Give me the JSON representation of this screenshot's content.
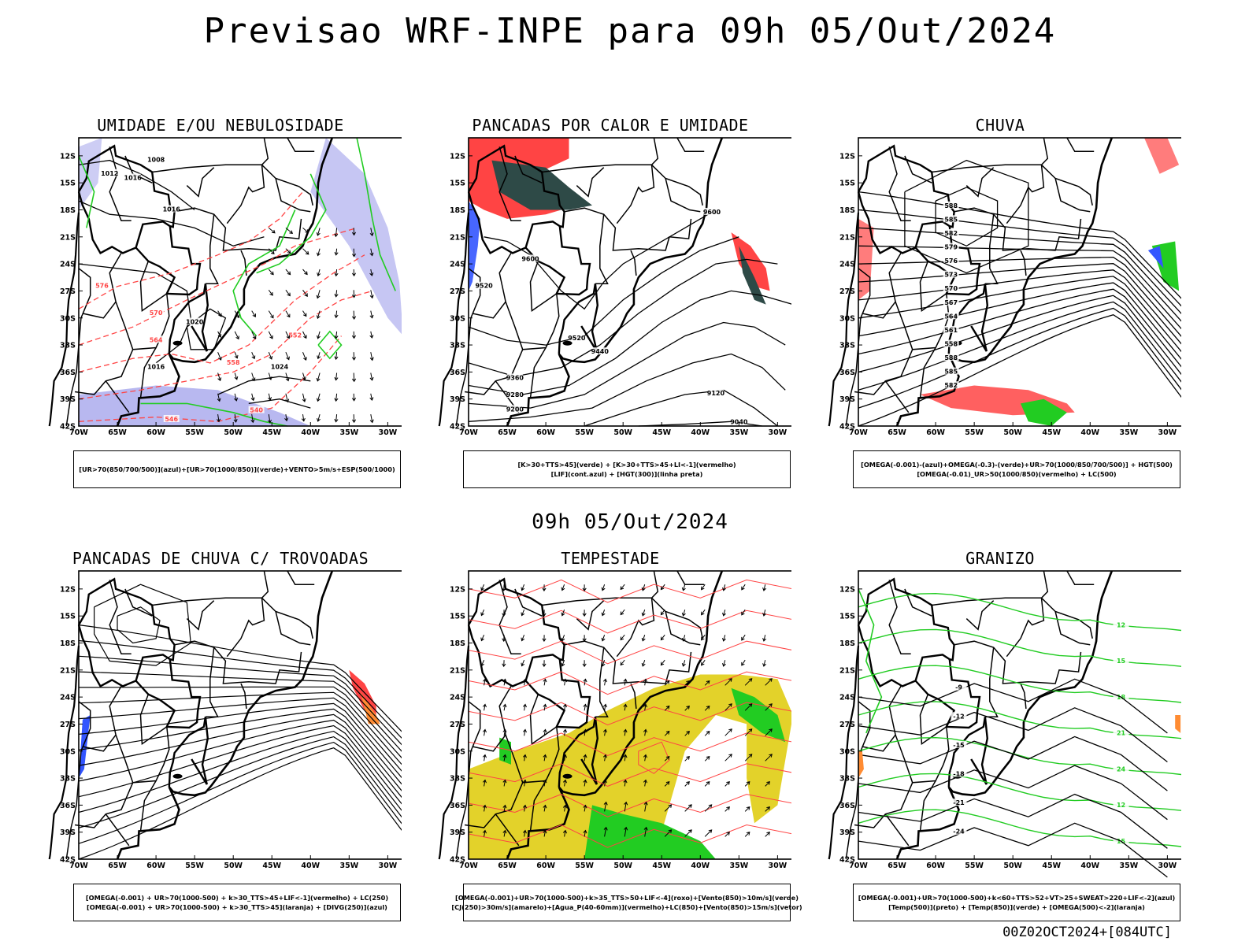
{
  "header": {
    "title": "Previsao WRF-INPE  para 09h 05/Out/2024"
  },
  "mid_title": "09h 05/Out/2024",
  "footer": "00Z02OCT2024+[084UTC]",
  "axes": {
    "lat_labels": [
      "12S",
      "15S",
      "18S",
      "21S",
      "24S",
      "27S",
      "30S",
      "33S",
      "36S",
      "39S",
      "42S"
    ],
    "lon_labels": [
      "70W",
      "65W",
      "60W",
      "55W",
      "50W",
      "45W",
      "40W",
      "35W",
      "30W"
    ]
  },
  "colors": {
    "green": "#22cc22",
    "red": "#ff4444",
    "blue": "#3355ff",
    "lavender": "#b8b8f0",
    "yellow": "#e3d22a",
    "darkteal": "#2e4a47",
    "orange": "#ff8c33",
    "black": "#000000"
  },
  "panels": [
    {
      "title": "UMIDADE E/OU NEBULOSIDADE",
      "legend": [
        "[UR>70(850/700/500)](azul)+[UR>70(1000/850)](verde)+VENTO>5m/s+ESP(500/1000)"
      ],
      "contour_labels": [
        "1016",
        "1012",
        "1008",
        "1016",
        "1020",
        "1024",
        "1016",
        "576",
        "570",
        "564",
        "558",
        "552",
        "546",
        "540"
      ]
    },
    {
      "title": "PANCADAS POR CALOR E UMIDADE",
      "legend": [
        "[K>30+TTS>45](verde) + [K>30+TTS>45+LI<-1](vermelho)",
        "[LIF](cont.azul) + [HGT(300)](linha preta)"
      ],
      "contour_labels": [
        "9600",
        "9520",
        "9440",
        "9360",
        "9280",
        "9200",
        "9120",
        "9040"
      ]
    },
    {
      "title": "CHUVA",
      "legend": [
        "[OMEGA(-0.001)-(azul)+OMEGA(-0.3)-(verde)+UR>70(1000/850/700/500)] + HGT(500)",
        "[OMEGA(-0.01)_UR>50(1000/850)(vermelho) + LC(500)"
      ],
      "contour_labels": [
        "588",
        "585",
        "582",
        "579",
        "576",
        "573",
        "570",
        "567",
        "564",
        "561",
        "558"
      ]
    },
    {
      "title": "PANCADAS DE CHUVA C/ TROVOADAS",
      "legend": [
        "[OMEGA(-0.001) + UR>70(1000-500) + k>30_TTS>45+LIF<-1](vermelho) + LC(250)",
        "[OMEGA(-0.001) + UR>70(1000-500) + k>30_TTS>45](laranja) + [DIVG(250)](azul)"
      ]
    },
    {
      "title": "TEMPESTADE",
      "legend": [
        "[OMEGA(-0.001)+UR>70(1000-500)+k>35_TTS>50+LIF<-4](roxo)+[Vento(850)>10m/s](verde)",
        "[CJ(250)>30m/s](amarelo)+[Agua_P(40-60mm)](vermelho)+LC(850)+[Vento(850)>15m/s](vetor)"
      ]
    },
    {
      "title": "GRANIZO",
      "legend": [
        "[OMEGA(-0.001)+UR>70(1000-500)+k<60+TTS>52+VT>25+SWEAT>220+LIF<-2](azul)",
        "[Temp(500)](preto) + [Temp(850)](verde) + [OMEGA(500)<-2](laranja)"
      ],
      "contour_labels": [
        "12",
        "15",
        "18",
        "21",
        "24",
        "-9",
        "-12",
        "-15",
        "-18",
        "-21",
        "-24"
      ]
    }
  ]
}
